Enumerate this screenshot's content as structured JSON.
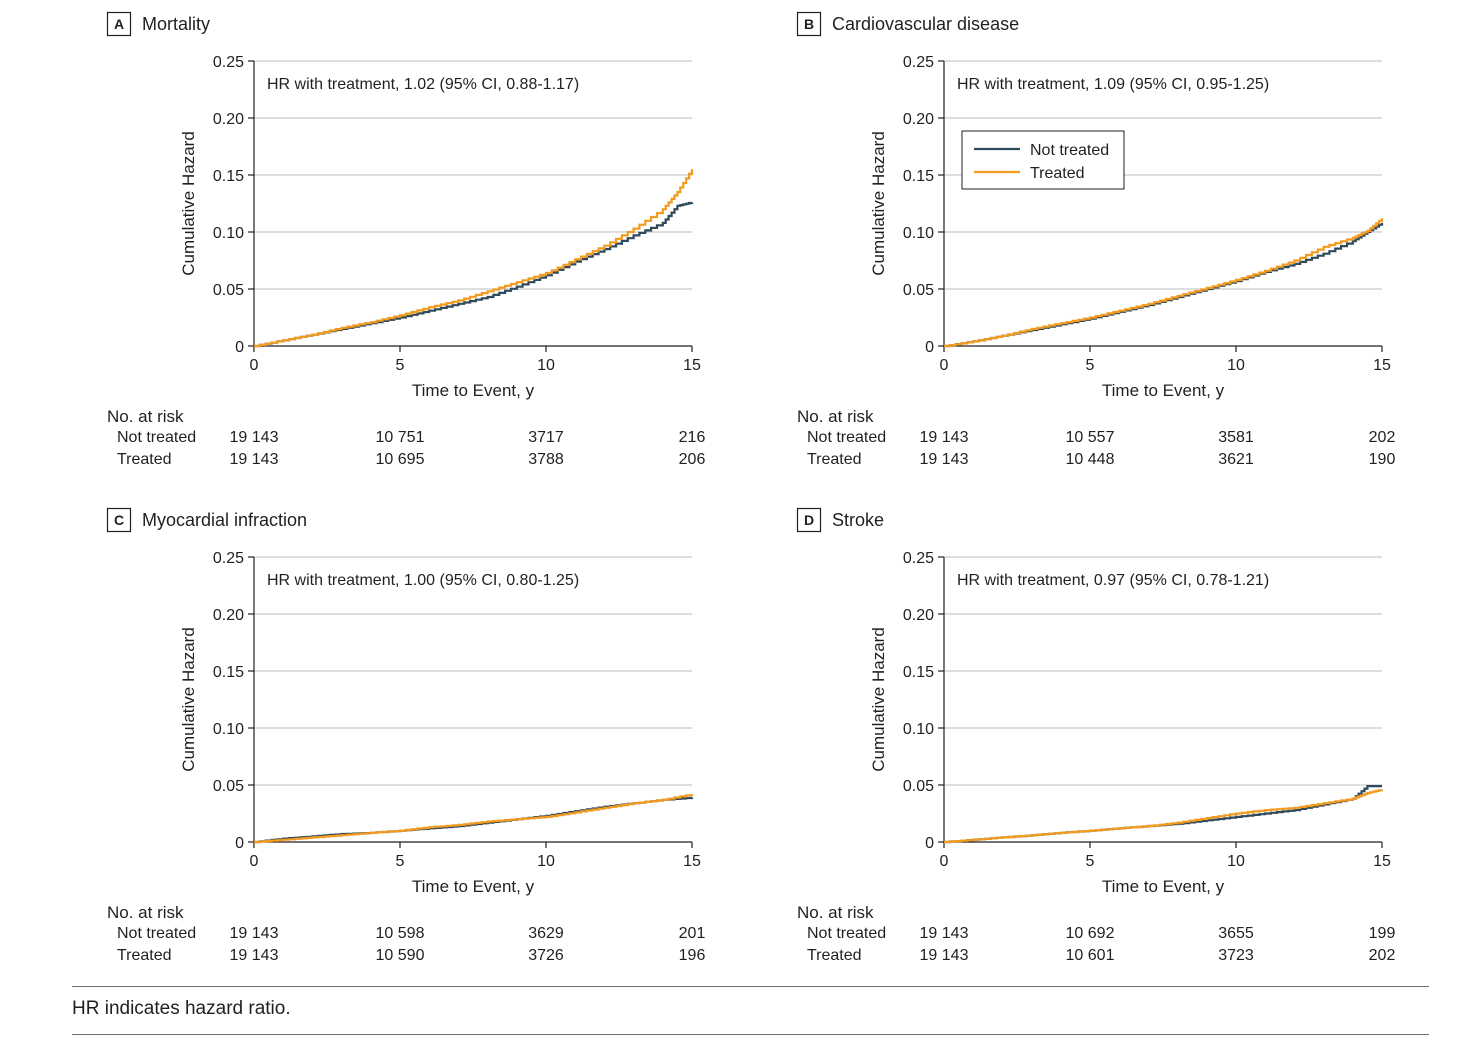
{
  "colors": {
    "not_treated": "#2e4a5c",
    "treated": "#f29b1f",
    "axis": "#231f20",
    "gridline": "#bcbec0"
  },
  "chart_data": [
    {
      "type": "line",
      "panel_letter": "A",
      "title": "Mortality",
      "annotation": "HR with treatment, 1.02 (95% CI, 0.88-1.17)",
      "xlabel": "Time to Event, y",
      "ylabel": "Cumulative Hazard",
      "xlim": [
        0,
        15
      ],
      "ylim": [
        0,
        0.25
      ],
      "x_ticks": [
        "0",
        "5",
        "10",
        "15"
      ],
      "y_ticks": [
        "0",
        "0.05",
        "0.10",
        "0.15",
        "0.20",
        "0.25"
      ],
      "grid": "horizontal",
      "legend": "none",
      "series": [
        {
          "name": "Not treated",
          "x": [
            0,
            1,
            2,
            3,
            4,
            5,
            6,
            7,
            8,
            9,
            10,
            11,
            12,
            13,
            14,
            14.5,
            15
          ],
          "y": [
            0,
            0.005,
            0.01,
            0.015,
            0.02,
            0.025,
            0.031,
            0.037,
            0.043,
            0.052,
            0.062,
            0.074,
            0.085,
            0.097,
            0.108,
            0.123,
            0.126
          ]
        },
        {
          "name": "Treated",
          "x": [
            0,
            1,
            2,
            3,
            4,
            5,
            6,
            7,
            8,
            9,
            10,
            11,
            12,
            13,
            14,
            14.5,
            15
          ],
          "y": [
            0,
            0.005,
            0.01,
            0.016,
            0.021,
            0.027,
            0.034,
            0.04,
            0.048,
            0.056,
            0.064,
            0.076,
            0.088,
            0.103,
            0.12,
            0.135,
            0.155
          ]
        }
      ],
      "at_risk": {
        "heading": "No. at risk",
        "rows": [
          {
            "label": "Not treated",
            "values": [
              "19 143",
              "10 751",
              "3717",
              "216"
            ]
          },
          {
            "label": "Treated",
            "values": [
              "19 143",
              "10 695",
              "3788",
              "206"
            ]
          }
        ]
      }
    },
    {
      "type": "line",
      "panel_letter": "B",
      "title": "Cardiovascular disease",
      "annotation": "HR with treatment, 1.09 (95% CI, 0.95-1.25)",
      "xlabel": "Time to Event, y",
      "ylabel": "Cumulative Hazard",
      "xlim": [
        0,
        15
      ],
      "ylim": [
        0,
        0.25
      ],
      "x_ticks": [
        "0",
        "5",
        "10",
        "15"
      ],
      "y_ticks": [
        "0",
        "0.05",
        "0.10",
        "0.15",
        "0.20",
        "0.25"
      ],
      "grid": "horizontal",
      "legend": "top-left",
      "legend_entries": [
        "Not treated",
        "Treated"
      ],
      "series": [
        {
          "name": "Not treated",
          "x": [
            0,
            1,
            2,
            3,
            4,
            5,
            6,
            7,
            8,
            9,
            10,
            11,
            12,
            13,
            14,
            14.5,
            15
          ],
          "y": [
            0,
            0.004,
            0.009,
            0.014,
            0.019,
            0.024,
            0.03,
            0.036,
            0.043,
            0.05,
            0.057,
            0.065,
            0.072,
            0.081,
            0.092,
            0.1,
            0.108
          ]
        },
        {
          "name": "Treated",
          "x": [
            0,
            1,
            2,
            3,
            4,
            5,
            6,
            7,
            8,
            9,
            10,
            11,
            12,
            13,
            14,
            14.5,
            15
          ],
          "y": [
            0,
            0.004,
            0.009,
            0.015,
            0.02,
            0.025,
            0.031,
            0.037,
            0.044,
            0.051,
            0.058,
            0.066,
            0.075,
            0.087,
            0.095,
            0.101,
            0.112
          ]
        }
      ],
      "at_risk": {
        "heading": "No. at risk",
        "rows": [
          {
            "label": "Not treated",
            "values": [
              "19 143",
              "10 557",
              "3581",
              "202"
            ]
          },
          {
            "label": "Treated",
            "values": [
              "19 143",
              "10 448",
              "3621",
              "190"
            ]
          }
        ]
      }
    },
    {
      "type": "line",
      "panel_letter": "C",
      "title": "Myocardial infraction",
      "annotation": "HR with treatment, 1.00 (95% CI, 0.80-1.25)",
      "xlabel": "Time to Event, y",
      "ylabel": "Cumulative Hazard",
      "xlim": [
        0,
        15
      ],
      "ylim": [
        0,
        0.25
      ],
      "x_ticks": [
        "0",
        "5",
        "10",
        "15"
      ],
      "y_ticks": [
        "0",
        "0.05",
        "0.10",
        "0.15",
        "0.20",
        "0.25"
      ],
      "grid": "horizontal",
      "legend": "none",
      "series": [
        {
          "name": "Not treated",
          "x": [
            0,
            1,
            2,
            3,
            4,
            5,
            6,
            7,
            8,
            9,
            10,
            11,
            12,
            13,
            14,
            15
          ],
          "y": [
            0,
            0.003,
            0.005,
            0.007,
            0.008,
            0.01,
            0.012,
            0.014,
            0.017,
            0.02,
            0.023,
            0.027,
            0.031,
            0.034,
            0.037,
            0.039
          ]
        },
        {
          "name": "Treated",
          "x": [
            0,
            1,
            2,
            3,
            4,
            5,
            6,
            7,
            8,
            9,
            10,
            11,
            12,
            13,
            14,
            15
          ],
          "y": [
            0,
            0.002,
            0.004,
            0.006,
            0.008,
            0.01,
            0.013,
            0.015,
            0.018,
            0.02,
            0.022,
            0.026,
            0.03,
            0.034,
            0.037,
            0.042
          ]
        }
      ],
      "at_risk": {
        "heading": "No. at risk",
        "rows": [
          {
            "label": "Not treated",
            "values": [
              "19 143",
              "10 598",
              "3629",
              "201"
            ]
          },
          {
            "label": "Treated",
            "values": [
              "19 143",
              "10 590",
              "3726",
              "196"
            ]
          }
        ]
      }
    },
    {
      "type": "line",
      "panel_letter": "D",
      "title": "Stroke",
      "annotation": "HR with treatment, 0.97 (95% CI, 0.78-1.21)",
      "xlabel": "Time to Event, y",
      "ylabel": "Cumulative Hazard",
      "xlim": [
        0,
        15
      ],
      "ylim": [
        0,
        0.25
      ],
      "x_ticks": [
        "0",
        "5",
        "10",
        "15"
      ],
      "y_ticks": [
        "0",
        "0.05",
        "0.10",
        "0.15",
        "0.20",
        "0.25"
      ],
      "grid": "horizontal",
      "legend": "none",
      "series": [
        {
          "name": "Not treated",
          "x": [
            0,
            1,
            2,
            3,
            4,
            5,
            6,
            7,
            8,
            9,
            10,
            11,
            12,
            13,
            14,
            14.5,
            15
          ],
          "y": [
            0,
            0.002,
            0.004,
            0.006,
            0.008,
            0.01,
            0.012,
            0.014,
            0.016,
            0.019,
            0.022,
            0.025,
            0.028,
            0.033,
            0.038,
            0.049,
            0.049
          ]
        },
        {
          "name": "Treated",
          "x": [
            0,
            1,
            2,
            3,
            4,
            5,
            6,
            7,
            8,
            9,
            10,
            11,
            12,
            13,
            14,
            14.5,
            15
          ],
          "y": [
            0,
            0.002,
            0.004,
            0.006,
            0.008,
            0.01,
            0.012,
            0.014,
            0.017,
            0.021,
            0.025,
            0.028,
            0.03,
            0.034,
            0.038,
            0.043,
            0.046
          ]
        }
      ],
      "at_risk": {
        "heading": "No. at risk",
        "rows": [
          {
            "label": "Not treated",
            "values": [
              "19 143",
              "10 692",
              "3655",
              "199"
            ]
          },
          {
            "label": "Treated",
            "values": [
              "19 143",
              "10 601",
              "3723",
              "202"
            ]
          }
        ]
      }
    }
  ],
  "footnote": "HR indicates hazard ratio."
}
